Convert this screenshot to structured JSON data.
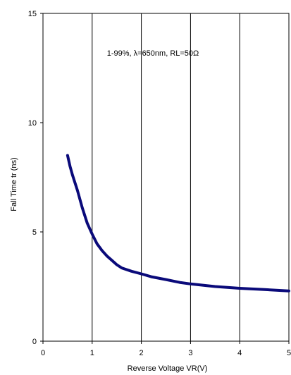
{
  "chart_data": {
    "type": "line",
    "title": "",
    "xlabel": "Reverse Voltage  VR(V)",
    "ylabel": "Fall Time  tr (ns)",
    "annotation": "1-99%, λ=650nm, RL=50Ω",
    "xlim": [
      0,
      5
    ],
    "ylim": [
      0,
      15
    ],
    "x_ticks": [
      "0",
      "1",
      "2",
      "3",
      "4",
      "5"
    ],
    "y_ticks": [
      "0",
      "5",
      "10",
      "15"
    ],
    "grid": "vertical",
    "line_color": "#0a0a7a",
    "series": [
      {
        "x": [
          0.5,
          0.55,
          0.6,
          0.7,
          0.8,
          0.9,
          1.0,
          1.1,
          1.2,
          1.3,
          1.4,
          1.5,
          1.6,
          1.8,
          2.0,
          2.2,
          2.5,
          2.8,
          3.0,
          3.5,
          4.0,
          4.5,
          5.0
        ],
        "y": [
          8.5,
          8.0,
          7.6,
          6.9,
          6.1,
          5.4,
          4.9,
          4.45,
          4.15,
          3.9,
          3.7,
          3.5,
          3.35,
          3.2,
          3.08,
          2.95,
          2.82,
          2.68,
          2.62,
          2.5,
          2.42,
          2.36,
          2.3
        ]
      }
    ]
  }
}
